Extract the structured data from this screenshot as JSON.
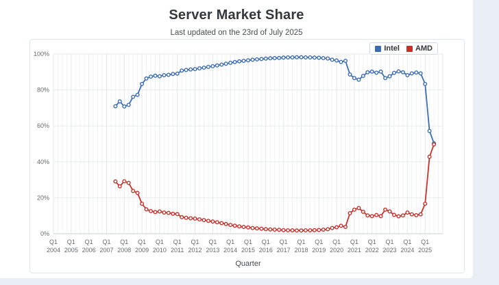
{
  "header": {
    "title": "Server Market Share",
    "subtitle": "Last updated on the 23rd of July 2025"
  },
  "legend": {
    "items": [
      {
        "label": "Intel",
        "color": "#3b6cb4"
      },
      {
        "label": "AMD",
        "color": "#c9302c"
      }
    ]
  },
  "colors": {
    "page_background": "#e9eff5",
    "panel_background": "#ffffff",
    "intel": "#3b6cb4",
    "amd": "#c9302c"
  },
  "chart_data": {
    "type": "line",
    "title": "Server Market Share",
    "subtitle": "Last updated on the 23rd of July 2025",
    "xlabel": "Quarter",
    "ylabel": "",
    "grid": true,
    "legend_position": "top-right",
    "x_axis": {
      "tick_label_top": "Q1",
      "years": [
        2004,
        2005,
        2006,
        2007,
        2008,
        2009,
        2010,
        2011,
        2012,
        2013,
        2014,
        2015,
        2016,
        2017,
        2018,
        2019,
        2020,
        2021,
        2022,
        2023,
        2024,
        2025
      ]
    },
    "y_axis": {
      "min": 0,
      "max": 100,
      "tick_step": 20,
      "tick_labels": [
        "0%",
        "20%",
        "40%",
        "60%",
        "80%",
        "100%"
      ]
    },
    "categories": [
      "2007 Q3",
      "2007 Q4",
      "2008 Q1",
      "2008 Q2",
      "2008 Q3",
      "2008 Q4",
      "2009 Q1",
      "2009 Q2",
      "2009 Q3",
      "2009 Q4",
      "2010 Q1",
      "2010 Q2",
      "2010 Q3",
      "2010 Q4",
      "2011 Q1",
      "2011 Q2",
      "2011 Q3",
      "2011 Q4",
      "2012 Q1",
      "2012 Q2",
      "2012 Q3",
      "2012 Q4",
      "2013 Q1",
      "2013 Q2",
      "2013 Q3",
      "2013 Q4",
      "2014 Q1",
      "2014 Q2",
      "2014 Q3",
      "2014 Q4",
      "2015 Q1",
      "2015 Q2",
      "2015 Q3",
      "2015 Q4",
      "2016 Q1",
      "2016 Q2",
      "2016 Q3",
      "2016 Q4",
      "2017 Q1",
      "2017 Q2",
      "2017 Q3",
      "2017 Q4",
      "2018 Q1",
      "2018 Q2",
      "2018 Q3",
      "2018 Q4",
      "2019 Q1",
      "2019 Q2",
      "2019 Q3",
      "2019 Q4",
      "2020 Q1",
      "2020 Q2",
      "2020 Q3",
      "2020 Q4",
      "2021 Q1",
      "2021 Q2",
      "2021 Q3",
      "2021 Q4",
      "2022 Q1",
      "2022 Q2",
      "2022 Q3",
      "2022 Q4",
      "2023 Q1",
      "2023 Q2",
      "2023 Q3",
      "2023 Q4",
      "2024 Q1",
      "2024 Q2",
      "2024 Q3",
      "2024 Q4",
      "2025 Q1",
      "2025 Q2",
      "2025 Q3"
    ],
    "series": [
      {
        "name": "Intel",
        "color": "#3b6cb4",
        "values": [
          70.9,
          73.6,
          70.8,
          71.7,
          76.2,
          77.3,
          83.3,
          86.4,
          87.4,
          87.9,
          87.6,
          88.2,
          88.4,
          88.9,
          89.1,
          90.8,
          91.1,
          91.4,
          91.6,
          92.0,
          92.4,
          92.8,
          93.2,
          93.6,
          94.1,
          94.6,
          95.1,
          95.5,
          95.9,
          96.2,
          96.5,
          96.8,
          97.0,
          97.2,
          97.4,
          97.6,
          97.7,
          97.8,
          98.0,
          98.1,
          98.1,
          98.2,
          98.2,
          98.1,
          98.1,
          98.0,
          97.9,
          97.7,
          97.5,
          96.8,
          96.4,
          95.6,
          96.2,
          88.6,
          86.6,
          85.7,
          87.8,
          89.8,
          90.2,
          89.6,
          90.2,
          86.6,
          87.6,
          89.5,
          90.3,
          89.8,
          88.2,
          89.2,
          89.7,
          89.2,
          83.3,
          57.2,
          50.3
        ]
      },
      {
        "name": "AMD",
        "color": "#c9302c",
        "values": [
          29.1,
          26.4,
          29.2,
          28.3,
          23.8,
          22.7,
          16.7,
          13.6,
          12.6,
          12.1,
          12.4,
          11.8,
          11.6,
          11.1,
          10.9,
          9.2,
          8.9,
          8.6,
          8.4,
          8.0,
          7.6,
          7.2,
          6.8,
          6.4,
          5.9,
          5.4,
          4.9,
          4.5,
          4.1,
          3.8,
          3.5,
          3.2,
          3.0,
          2.8,
          2.6,
          2.4,
          2.3,
          2.2,
          2.0,
          1.9,
          1.9,
          1.8,
          1.8,
          1.9,
          1.9,
          2.0,
          2.1,
          2.3,
          2.5,
          3.2,
          3.6,
          4.4,
          3.8,
          11.4,
          13.4,
          14.3,
          12.2,
          10.2,
          9.8,
          10.4,
          9.8,
          13.4,
          12.4,
          10.5,
          9.7,
          10.2,
          11.8,
          10.8,
          10.3,
          10.8,
          16.7,
          42.8,
          49.7
        ]
      }
    ]
  }
}
